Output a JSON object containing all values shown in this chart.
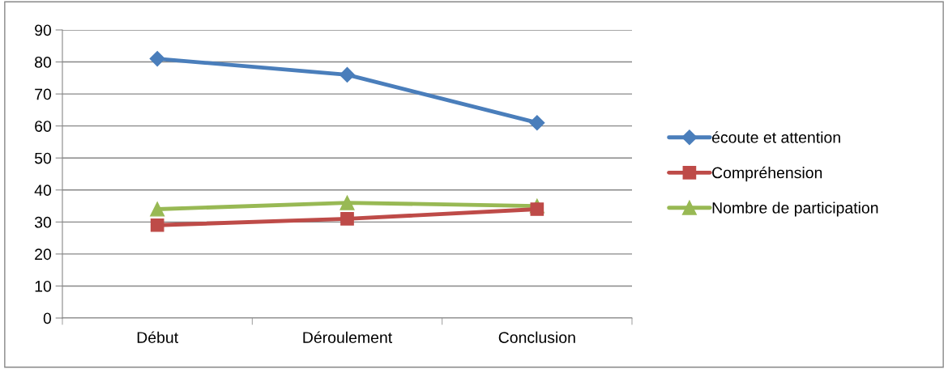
{
  "chart_data": {
    "type": "line",
    "categories": [
      "Début",
      "Déroulement",
      "Conclusion"
    ],
    "series": [
      {
        "name": "écoute et attention",
        "color": "#4a7ebb",
        "values": [
          81,
          76,
          61
        ],
        "marker": "diamond"
      },
      {
        "name": "Compréhension",
        "color": "#be4b48",
        "values": [
          29,
          31,
          34
        ],
        "marker": "square"
      },
      {
        "name": "Nombre de participation",
        "color": "#98b954",
        "values": [
          34,
          36,
          35
        ],
        "marker": "triangle"
      }
    ],
    "ylim": [
      0,
      90
    ],
    "yticks": [
      0,
      10,
      20,
      30,
      40,
      50,
      60,
      70,
      80,
      90
    ],
    "grid": "y",
    "legend": "right",
    "line_style": "solid"
  }
}
